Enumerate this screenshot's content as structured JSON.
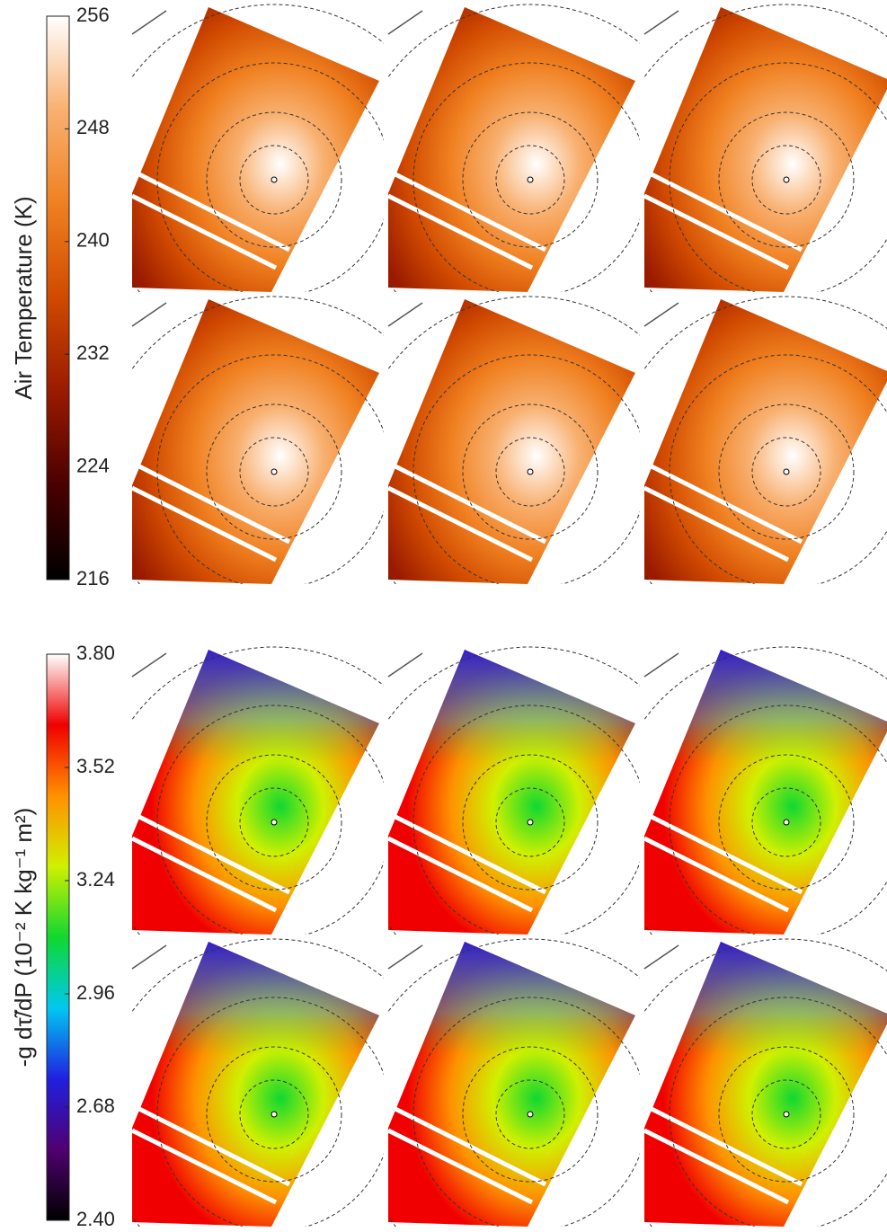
{
  "colorbars": [
    {
      "label": "Air Temperature (K)",
      "lim": [
        216,
        256
      ],
      "ticks": [
        256,
        248,
        240,
        232,
        224,
        216
      ],
      "colors": [
        "#000000",
        "#4a0000",
        "#9a1a00",
        "#d04a00",
        "#f08020",
        "#f8b070",
        "#ffffff"
      ]
    },
    {
      "label": "-g dτ̃/dP (10⁻² K kg⁻¹ m²)",
      "lim": [
        2.4,
        3.8
      ],
      "ticks": [
        {
          "value": 3.8,
          "label": "3.80"
        },
        3.52,
        3.24,
        2.96,
        2.68,
        {
          "value": 2.4,
          "label": "2.40"
        }
      ],
      "colors": [
        "#000000",
        "#500070",
        "#2020e0",
        "#00c8f0",
        "#10d830",
        "#d0f000",
        "#ff9000",
        "#f00000",
        "#ffffff"
      ]
    }
  ]
}
